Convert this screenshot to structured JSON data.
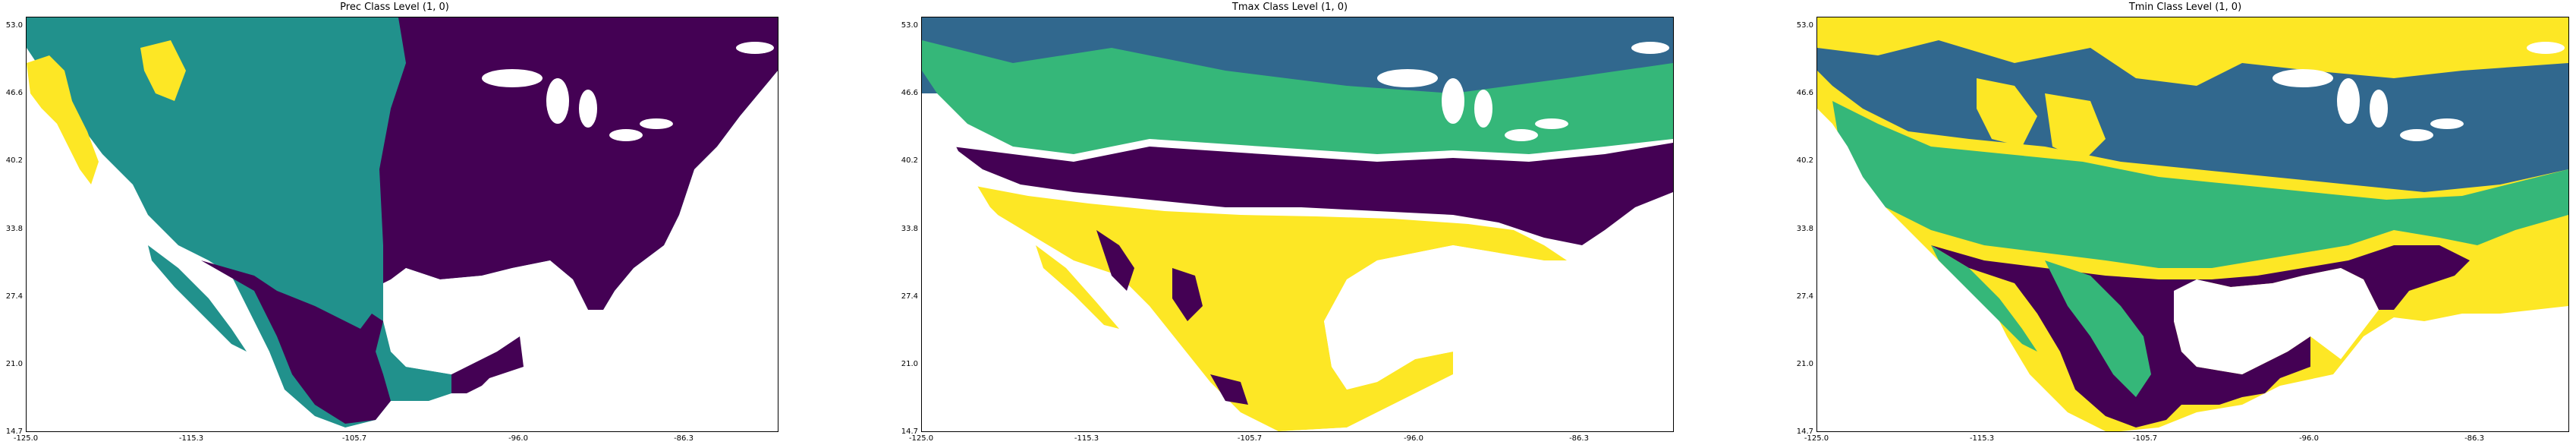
{
  "panels": [
    {
      "title": "Prec Class Level (1, 0)"
    },
    {
      "title": "Tmax Class Level (1, 0)"
    },
    {
      "title": "Tmin Class Level (1, 0)"
    }
  ],
  "y_ticks": [
    "53.0",
    "46.6",
    "40.2",
    "33.8",
    "27.4",
    "21.0",
    "14.7"
  ],
  "x_ticks": [
    "-125.0",
    "-115.3",
    "-105.7",
    "-96.0",
    "-86.3"
  ],
  "colors": {
    "purple": "#440154",
    "teal": "#21918c",
    "blue": "#31688e",
    "green": "#35b779",
    "yellow": "#fde725"
  }
}
